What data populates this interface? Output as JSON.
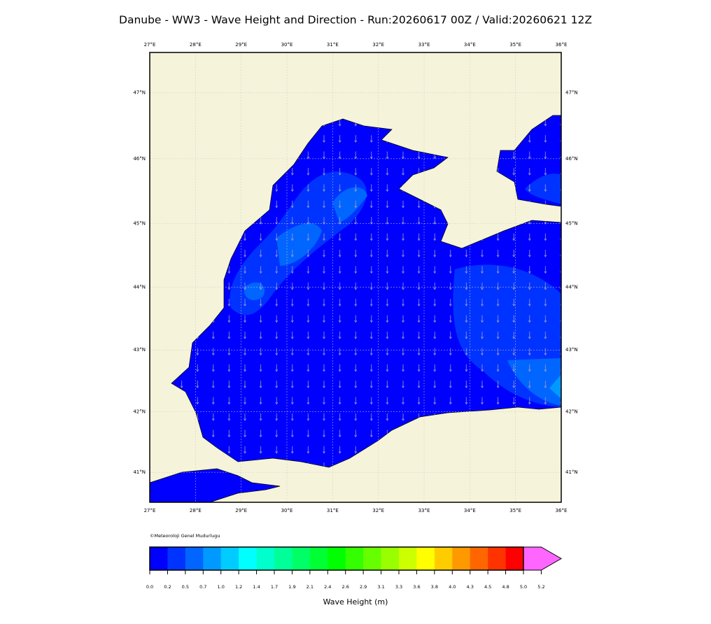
{
  "title": "Danube - WW3 - Wave Height and Direction - Run:20260617 00Z / Valid:20260621 12Z",
  "map": {
    "xlim": [
      27,
      36
    ],
    "ylim": [
      40.5,
      47.6
    ],
    "xticks": [
      {
        "value": 27,
        "label": "27°E"
      },
      {
        "value": 28,
        "label": "28°E"
      },
      {
        "value": 29,
        "label": "29°E"
      },
      {
        "value": 30,
        "label": "30°E"
      },
      {
        "value": 31,
        "label": "31°E"
      },
      {
        "value": 32,
        "label": "32°E"
      },
      {
        "value": 33,
        "label": "33°E"
      },
      {
        "value": 34,
        "label": "34°E"
      },
      {
        "value": 35,
        "label": "35°E"
      },
      {
        "value": 36,
        "label": "36°E"
      }
    ],
    "yticks": [
      {
        "value": 41,
        "label": "41°N"
      },
      {
        "value": 42,
        "label": "42°N"
      },
      {
        "value": 43,
        "label": "43°N"
      },
      {
        "value": 44,
        "label": "44°N"
      },
      {
        "value": 45,
        "label": "45°N"
      },
      {
        "value": 46,
        "label": "46°N"
      },
      {
        "value": 47,
        "label": "47°N"
      }
    ]
  },
  "credit": "©Meteoroloji Genel Mudurlugu",
  "colorbar": {
    "label": "Wave Height (m)",
    "colors": [
      "#0000ff",
      "#0033ff",
      "#0066ff",
      "#0099ff",
      "#00ccff",
      "#00ffff",
      "#00ffcc",
      "#00ff99",
      "#00ff66",
      "#00ff33",
      "#00ff00",
      "#33ff00",
      "#66ff00",
      "#99ff00",
      "#ccff00",
      "#ffff00",
      "#ffcc00",
      "#ff9900",
      "#ff6600",
      "#ff3300",
      "#ff0000"
    ],
    "extend_color": "#ff66ff",
    "ticks": [
      {
        "value": 0,
        "label": "0.0"
      },
      0.2,
      0.5,
      0.7,
      {
        "value": 1,
        "label": "1.0"
      },
      1.2,
      1.4,
      1.7,
      1.9,
      2.1,
      2.4,
      2.6,
      2.9,
      3.1,
      3.3,
      3.6,
      3.8,
      {
        "value": 4,
        "label": "4.0"
      },
      4.3,
      4.5,
      4.8,
      {
        "value": 5,
        "label": "5.0"
      },
      5.2
    ]
  }
}
